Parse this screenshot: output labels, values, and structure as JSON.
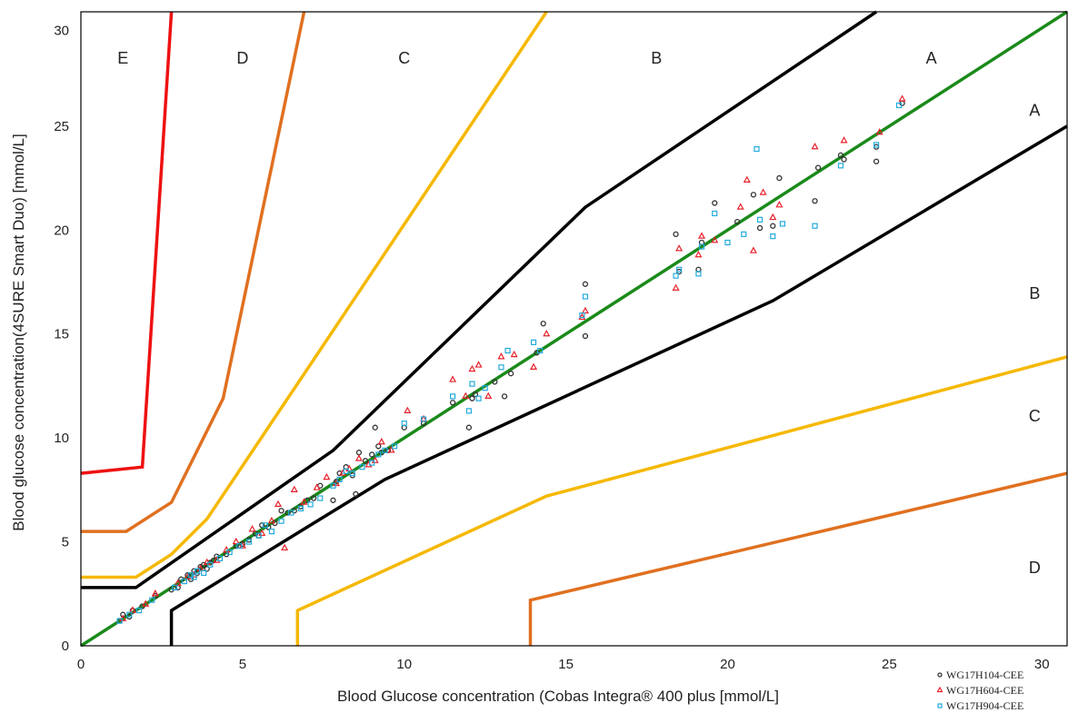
{
  "chart_data": {
    "type": "scatter",
    "title": "",
    "xlabel": "Blood Glucose concentration (Cobas Integra® 400 plus [mmol/L]",
    "ylabel": "Blood glucose concentration(4SURE Smart Duo) [mmol/L]",
    "xlim": [
      0,
      30.5
    ],
    "ylim": [
      0,
      30.5
    ],
    "xticks": [
      0,
      5,
      10,
      15,
      20,
      25,
      30
    ],
    "yticks": [
      0,
      5,
      10,
      15,
      20,
      25,
      30
    ],
    "grid": false,
    "legend_position": "bottom-right",
    "zone_labels": [
      {
        "text": "E",
        "x": 1.3,
        "y": 28
      },
      {
        "text": "D",
        "x": 5,
        "y": 28
      },
      {
        "text": "C",
        "x": 10,
        "y": 28
      },
      {
        "text": "B",
        "x": 17.8,
        "y": 28
      },
      {
        "text": "A",
        "x": 26.3,
        "y": 28
      },
      {
        "text": "A",
        "x": 29.5,
        "y": 25.5
      },
      {
        "text": "B",
        "x": 29.5,
        "y": 16.7
      },
      {
        "text": "C",
        "x": 29.5,
        "y": 10.8
      },
      {
        "text": "D",
        "x": 29.5,
        "y": 3.5
      }
    ],
    "reference_line": {
      "color": "#1a8a1a",
      "points": [
        [
          0,
          0
        ],
        [
          30.5,
          30.5
        ]
      ]
    },
    "zone_boundaries": [
      {
        "color": "#000000",
        "points": [
          [
            0,
            2.8
          ],
          [
            1.7,
            2.8
          ],
          [
            7.8,
            9.4
          ],
          [
            15.6,
            21.1
          ],
          [
            24.6,
            30.5
          ]
        ]
      },
      {
        "color": "#000000",
        "points": [
          [
            2.8,
            0
          ],
          [
            2.8,
            1.7
          ],
          [
            9.4,
            8.0
          ],
          [
            21.4,
            16.6
          ],
          [
            30.5,
            25.0
          ]
        ]
      },
      {
        "color": "#f5b800",
        "points": [
          [
            0,
            3.3
          ],
          [
            1.7,
            3.3
          ],
          [
            2.8,
            4.4
          ],
          [
            3.9,
            6.1
          ],
          [
            14.4,
            30.5
          ]
        ]
      },
      {
        "color": "#f5b800",
        "points": [
          [
            6.7,
            0
          ],
          [
            6.7,
            1.7
          ],
          [
            14.4,
            7.2
          ],
          [
            30.5,
            13.9
          ]
        ]
      },
      {
        "color": "#e07020",
        "points": [
          [
            0,
            5.5
          ],
          [
            1.4,
            5.5
          ],
          [
            2.8,
            6.9
          ],
          [
            4.4,
            11.9
          ],
          [
            6.9,
            30.5
          ]
        ]
      },
      {
        "color": "#e07020",
        "points": [
          [
            13.9,
            0
          ],
          [
            13.9,
            2.2
          ],
          [
            30.5,
            8.3
          ]
        ]
      },
      {
        "color": "#ee1111",
        "points": [
          [
            0,
            8.3
          ],
          [
            1.9,
            8.6
          ],
          [
            2.8,
            30.5
          ]
        ]
      }
    ],
    "series": [
      {
        "name": "WG17H104-CEE",
        "marker": "circle",
        "color": "#333333",
        "x": [
          1.2,
          1.3,
          1.5,
          1.6,
          1.9,
          2.3,
          2.8,
          3.0,
          3.1,
          3.3,
          3.4,
          3.5,
          3.6,
          3.7,
          3.8,
          3.9,
          4.0,
          4.1,
          4.2,
          4.5,
          4.8,
          5.0,
          5.2,
          5.4,
          5.5,
          5.6,
          5.8,
          6.0,
          6.2,
          6.4,
          6.6,
          6.8,
          7.0,
          7.2,
          7.4,
          7.8,
          7.9,
          8.0,
          8.2,
          8.4,
          8.5,
          8.6,
          8.8,
          9.0,
          9.1,
          9.2,
          9.3,
          9.5,
          10.0,
          10.6,
          11.5,
          12.0,
          12.1,
          12.2,
          12.8,
          13.1,
          13.3,
          14.1,
          14.3,
          15.6,
          15.6,
          18.4,
          18.5,
          19.1,
          19.2,
          19.6,
          20.3,
          20.8,
          21.0,
          21.4,
          21.6,
          22.7,
          22.8,
          23.5,
          23.6,
          24.6,
          24.6,
          25.4
        ],
        "y": [
          1.2,
          1.5,
          1.4,
          1.7,
          1.9,
          2.4,
          2.7,
          2.8,
          3.2,
          3.4,
          3.2,
          3.6,
          3.5,
          3.8,
          3.9,
          3.7,
          4.0,
          4.1,
          4.3,
          4.4,
          4.8,
          4.9,
          5.1,
          5.4,
          5.3,
          5.8,
          5.7,
          5.9,
          6.5,
          6.4,
          6.5,
          6.7,
          7.0,
          7.1,
          7.7,
          7.0,
          7.9,
          8.3,
          8.6,
          8.2,
          7.3,
          9.3,
          8.9,
          9.2,
          10.5,
          9.6,
          9.3,
          9.4,
          10.5,
          10.7,
          11.7,
          10.5,
          11.9,
          12.1,
          12.7,
          12.0,
          13.1,
          14.1,
          15.5,
          17.4,
          14.9,
          19.8,
          18.0,
          18.1,
          19.4,
          21.3,
          20.4,
          21.7,
          20.1,
          20.2,
          22.5,
          21.4,
          23.0,
          23.6,
          23.4,
          23.3,
          24.0,
          26.1
        ]
      },
      {
        "name": "WG17H604-CEE",
        "marker": "triangle",
        "color": "#e8202a",
        "x": [
          1.3,
          1.6,
          2.0,
          2.3,
          3.0,
          3.3,
          3.5,
          3.7,
          3.9,
          4.2,
          4.5,
          4.8,
          5.0,
          5.3,
          5.6,
          5.9,
          6.1,
          6.3,
          6.6,
          6.9,
          7.3,
          7.6,
          7.9,
          8.1,
          8.3,
          8.6,
          8.9,
          9.1,
          9.3,
          9.6,
          10.1,
          10.6,
          11.5,
          11.9,
          12.1,
          12.3,
          12.6,
          13.0,
          13.4,
          14.0,
          14.4,
          15.5,
          15.6,
          18.4,
          18.5,
          19.1,
          19.2,
          19.6,
          20.4,
          20.6,
          20.8,
          21.1,
          21.4,
          21.6,
          22.7,
          23.6,
          24.7,
          25.4
        ],
        "y": [
          1.3,
          1.7,
          2.0,
          2.5,
          3.0,
          3.3,
          3.4,
          3.7,
          4.0,
          4.1,
          4.6,
          5.0,
          4.8,
          5.6,
          5.4,
          6.0,
          6.8,
          4.7,
          7.5,
          6.9,
          7.6,
          8.1,
          7.8,
          8.3,
          8.5,
          9.0,
          8.7,
          8.9,
          9.8,
          9.4,
          11.3,
          10.9,
          12.8,
          12.0,
          13.3,
          13.5,
          12.0,
          13.9,
          14.0,
          13.4,
          15.0,
          15.8,
          16.1,
          17.2,
          19.1,
          18.8,
          19.7,
          19.5,
          21.1,
          22.4,
          19.0,
          21.8,
          20.6,
          21.2,
          24.0,
          24.3,
          24.7,
          26.3
        ]
      },
      {
        "name": "WG17H904-CEE",
        "marker": "square",
        "color": "#22aadd",
        "x": [
          1.2,
          1.5,
          1.8,
          2.2,
          2.9,
          3.2,
          3.4,
          3.5,
          3.6,
          3.8,
          4.0,
          4.3,
          4.6,
          4.9,
          5.2,
          5.5,
          5.7,
          5.9,
          6.2,
          6.5,
          6.8,
          7.1,
          7.4,
          7.8,
          8.0,
          8.2,
          8.4,
          8.7,
          9.0,
          9.2,
          9.4,
          9.7,
          10.0,
          10.6,
          11.5,
          12.0,
          12.1,
          12.3,
          12.5,
          13.0,
          13.2,
          14.0,
          14.2,
          15.5,
          15.6,
          18.4,
          18.5,
          19.1,
          19.2,
          19.6,
          20.0,
          20.5,
          20.9,
          21.0,
          21.4,
          21.7,
          22.7,
          23.5,
          24.6,
          25.3
        ],
        "y": [
          1.2,
          1.5,
          1.7,
          2.2,
          2.8,
          3.1,
          3.4,
          3.3,
          3.6,
          3.5,
          3.9,
          4.2,
          4.5,
          4.8,
          5.0,
          5.3,
          5.8,
          5.5,
          6.0,
          6.4,
          6.6,
          6.8,
          7.1,
          7.7,
          8.0,
          8.4,
          8.3,
          8.6,
          8.8,
          9.2,
          9.4,
          9.6,
          10.7,
          10.9,
          12.0,
          11.3,
          12.6,
          11.9,
          12.4,
          13.4,
          14.2,
          14.6,
          14.2,
          15.9,
          16.8,
          17.8,
          18.1,
          17.9,
          19.2,
          20.8,
          19.4,
          19.8,
          23.9,
          20.5,
          19.7,
          20.3,
          20.2,
          23.1,
          24.1,
          26.0
        ]
      }
    ]
  }
}
